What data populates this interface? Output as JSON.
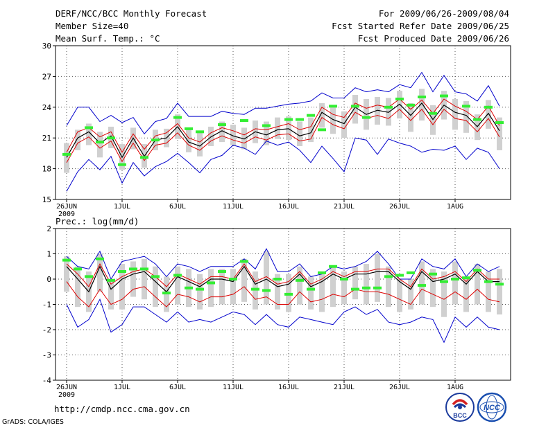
{
  "header": {
    "title": "DERF/NCC/BCC Monthly Forecast",
    "member_size": "Member Size=40",
    "variable": "Mean Surf. Temp.: °C",
    "period": "For 2009/06/26-2009/08/04",
    "refer_date": "Fcst Started Refer Date 2009/06/25",
    "produced_date": "Fcst Produced Date 2009/06/26"
  },
  "footer": {
    "url": "http://cmdp.ncc.cma.gov.cn",
    "credit": "GrADS: COLA/IGES",
    "logo_bcc_text": "BCC",
    "logo_ncc_text": "NCC"
  },
  "colors": {
    "envelope": "#0000cc",
    "spread": "#dd0000",
    "mean": "#000000",
    "box": "#d0d0d0",
    "obs": "#33ee33",
    "grid": "#555555"
  },
  "chart_data": [
    {
      "type": "ensemble-boxplot",
      "panel": "temperature",
      "title": "Mean Surf. Temp.: °C",
      "ylim": [
        15,
        30
      ],
      "yticks": [
        15,
        18,
        21,
        24,
        27,
        30
      ],
      "ytick_labels": [
        "15",
        "18",
        "21",
        "24",
        "27",
        "30"
      ],
      "xlim": [
        1,
        40
      ],
      "xticks": [
        1,
        6,
        11,
        16,
        21,
        26,
        31,
        36
      ],
      "xtick_labels": [
        "26JUN",
        "1JUL",
        "6JUL",
        "11JUL",
        "16JUL",
        "21JUL",
        "26JUL",
        "1AUG"
      ],
      "year_label": "2009",
      "grid": true,
      "day": [
        1,
        2,
        3,
        4,
        5,
        6,
        7,
        8,
        9,
        10,
        11,
        12,
        13,
        14,
        15,
        16,
        17,
        18,
        19,
        20,
        21,
        22,
        23,
        24,
        25,
        26,
        27,
        28,
        29,
        30,
        31,
        32,
        33,
        34,
        35,
        36,
        37,
        38,
        39,
        40
      ],
      "max": [
        22.2,
        24.0,
        24.0,
        22.6,
        23.2,
        22.5,
        23.0,
        21.4,
        22.6,
        22.9,
        24.4,
        23.1,
        23.1,
        23.1,
        23.6,
        23.4,
        23.3,
        23.9,
        23.9,
        24.1,
        24.3,
        24.4,
        24.6,
        25.4,
        24.9,
        24.9,
        25.9,
        25.5,
        25.7,
        25.5,
        26.2,
        25.9,
        27.4,
        25.5,
        27.1,
        25.5,
        25.3,
        24.6,
        26.1,
        24.1
      ],
      "min": [
        15.8,
        17.7,
        18.9,
        17.9,
        19.2,
        16.6,
        18.6,
        17.3,
        18.2,
        18.7,
        19.5,
        18.6,
        17.6,
        18.9,
        19.3,
        20.3,
        20.0,
        19.4,
        20.7,
        20.3,
        20.6,
        19.8,
        18.6,
        20.2,
        19.0,
        17.7,
        21.0,
        20.8,
        19.4,
        20.9,
        20.5,
        20.2,
        19.6,
        19.9,
        19.8,
        20.2,
        18.9,
        20.0,
        19.6,
        18.0
      ],
      "spread_upper": [
        19.6,
        21.6,
        22.0,
        21.1,
        21.6,
        19.6,
        21.4,
        19.9,
        21.2,
        21.5,
        22.4,
        21.0,
        20.6,
        21.5,
        22.0,
        21.7,
        21.3,
        21.9,
        21.8,
        22.1,
        22.4,
        21.8,
        22.1,
        24.0,
        23.3,
        23.0,
        24.4,
        23.9,
        24.2,
        24.0,
        24.8,
        23.8,
        24.7,
        23.4,
        24.8,
        24.1,
        23.6,
        22.8,
        24.1,
        22.2
      ],
      "mean": [
        19.1,
        21.0,
        21.6,
        20.5,
        21.2,
        19.1,
        21.0,
        19.2,
        20.8,
        21.0,
        22.1,
        20.6,
        20.2,
        21.1,
        21.7,
        21.2,
        20.9,
        21.6,
        21.3,
        21.8,
        21.9,
        21.2,
        21.5,
        23.5,
        22.8,
        22.4,
        24.0,
        23.3,
        23.7,
        23.5,
        24.3,
        23.2,
        24.4,
        22.8,
        24.2,
        23.5,
        23.2,
        22.1,
        23.4,
        21.7
      ],
      "spread_lower": [
        18.6,
        20.5,
        21.1,
        20.0,
        20.7,
        18.7,
        20.5,
        18.8,
        20.3,
        20.5,
        21.5,
        20.3,
        19.8,
        20.7,
        21.2,
        20.8,
        20.5,
        21.1,
        20.8,
        21.3,
        21.4,
        20.7,
        20.9,
        23.0,
        22.3,
        21.9,
        23.5,
        22.9,
        23.2,
        22.9,
        23.8,
        22.7,
        23.8,
        22.3,
        23.8,
        22.9,
        22.7,
        21.6,
        22.9,
        21.1
      ],
      "box_high": [
        20.5,
        21.8,
        22.4,
        21.6,
        22.1,
        20.4,
        22.0,
        20.4,
        21.8,
        21.9,
        23.3,
        21.9,
        21.5,
        22.1,
        22.6,
        22.3,
        22.0,
        22.7,
        22.6,
        23.0,
        23.1,
        22.6,
        23.0,
        24.4,
        24.0,
        23.6,
        25.2,
        24.8,
        25.0,
        24.9,
        25.6,
        24.4,
        25.8,
        24.2,
        25.6,
        24.8,
        24.6,
        23.3,
        24.7,
        23.0
      ],
      "box_low": [
        17.6,
        19.8,
        20.3,
        19.1,
        20.0,
        17.9,
        19.9,
        18.1,
        19.8,
        20.1,
        20.9,
        19.6,
        19.2,
        20.2,
        20.6,
        20.3,
        19.9,
        20.5,
        20.3,
        20.9,
        20.8,
        20.2,
        20.6,
        22.0,
        21.4,
        21.0,
        22.4,
        21.8,
        22.3,
        22.2,
        22.9,
        21.6,
        22.7,
        21.3,
        22.8,
        21.8,
        21.5,
        20.8,
        21.9,
        19.8
      ],
      "observed": [
        19.4,
        null,
        22.0,
        20.6,
        21.0,
        18.4,
        null,
        19.1,
        20.8,
        null,
        23.0,
        21.9,
        21.6,
        null,
        22.3,
        null,
        22.7,
        null,
        22.2,
        null,
        22.8,
        22.8,
        23.2,
        21.8,
        24.1,
        null,
        24.1,
        23.0,
        null,
        24.0,
        24.8,
        24.2,
        25.0,
        23.4,
        25.1,
        null,
        24.1,
        22.8,
        24.0,
        22.5
      ]
    },
    {
      "type": "ensemble-boxplot",
      "panel": "precipitation",
      "title": "Prec.: log(mm/d)",
      "ylim": [
        -4,
        2
      ],
      "yticks": [
        -4,
        -3,
        -2,
        -1,
        0,
        1,
        2
      ],
      "ytick_labels": [
        "-4",
        "-3",
        "-2",
        "-1",
        "0",
        "1",
        "2"
      ],
      "xlim": [
        1,
        40
      ],
      "xticks": [
        1,
        6,
        11,
        16,
        21,
        26,
        31,
        36
      ],
      "xtick_labels": [
        "26JUN",
        "1JUL",
        "6JUL",
        "11JUL",
        "16JUL",
        "21JUL",
        "26JUL",
        "1AUG"
      ],
      "year_label": "2009",
      "grid": true,
      "day": [
        1,
        2,
        3,
        4,
        5,
        6,
        7,
        8,
        9,
        10,
        11,
        12,
        13,
        14,
        15,
        16,
        17,
        18,
        19,
        20,
        21,
        22,
        23,
        24,
        25,
        26,
        27,
        28,
        29,
        30,
        31,
        32,
        33,
        34,
        35,
        36,
        37,
        38,
        39,
        40
      ],
      "max": [
        0.9,
        0.5,
        0.4,
        1.1,
        0.0,
        0.7,
        0.8,
        0.9,
        0.6,
        0.1,
        0.6,
        0.5,
        0.3,
        0.5,
        0.5,
        0.5,
        0.8,
        0.4,
        1.2,
        0.3,
        0.3,
        0.6,
        0.1,
        0.2,
        0.5,
        0.4,
        0.5,
        0.7,
        1.1,
        0.6,
        0.0,
        0.0,
        0.8,
        0.5,
        0.4,
        0.8,
        0.1,
        0.6,
        0.3,
        0.5
      ],
      "min": [
        -1.0,
        -1.9,
        -1.6,
        -0.8,
        -2.1,
        -1.8,
        -1.1,
        -1.1,
        -1.4,
        -1.7,
        -1.3,
        -1.7,
        -1.6,
        -1.7,
        -1.5,
        -1.3,
        -1.4,
        -1.8,
        -1.4,
        -1.8,
        -1.9,
        -1.5,
        -1.6,
        -1.7,
        -1.8,
        -1.3,
        -1.1,
        -1.4,
        -1.2,
        -1.7,
        -1.8,
        -1.7,
        -1.5,
        -1.6,
        -2.5,
        -1.5,
        -1.9,
        -1.5,
        -1.9,
        -2.0
      ],
      "spread_upper": [
        0.6,
        0.2,
        -0.3,
        0.6,
        -0.2,
        0.1,
        0.3,
        0.4,
        0.1,
        -0.3,
        0.2,
        0.0,
        -0.2,
        0.1,
        0.1,
        0.0,
        0.6,
        -0.1,
        0.1,
        -0.2,
        -0.1,
        0.3,
        -0.2,
        0.0,
        0.3,
        0.1,
        0.3,
        0.3,
        0.4,
        0.4,
        0.0,
        -0.3,
        0.4,
        0.0,
        0.1,
        0.3,
        -0.1,
        0.4,
        0.0,
        0.0
      ],
      "mean": [
        0.5,
        0.0,
        -0.5,
        0.5,
        -0.4,
        0.0,
        0.2,
        0.3,
        -0.1,
        -0.5,
        0.1,
        -0.1,
        -0.3,
        0.0,
        0.0,
        -0.1,
        0.5,
        -0.2,
        0.0,
        -0.3,
        -0.2,
        0.2,
        -0.3,
        -0.1,
        0.2,
        0.0,
        0.2,
        0.2,
        0.3,
        0.3,
        -0.1,
        -0.4,
        0.3,
        -0.1,
        0.0,
        0.2,
        -0.2,
        0.3,
        -0.1,
        -0.1
      ],
      "spread_lower": [
        -0.1,
        -0.7,
        -1.1,
        -0.4,
        -1.0,
        -0.8,
        -0.4,
        -0.3,
        -0.7,
        -1.1,
        -0.6,
        -0.7,
        -0.9,
        -0.7,
        -0.7,
        -0.6,
        -0.3,
        -0.8,
        -0.7,
        -1.0,
        -1.0,
        -0.5,
        -0.9,
        -0.8,
        -0.6,
        -0.7,
        -0.4,
        -0.5,
        -0.5,
        -0.6,
        -0.8,
        -1.0,
        -0.4,
        -0.6,
        -0.8,
        -0.5,
        -0.8,
        -0.4,
        -0.8,
        -0.9
      ],
      "box_high": [
        0.9,
        0.5,
        0.3,
        1.0,
        0.0,
        0.6,
        0.7,
        0.8,
        0.5,
        0.1,
        0.5,
        0.4,
        0.2,
        0.4,
        0.4,
        0.4,
        0.8,
        0.3,
        1.1,
        0.2,
        0.2,
        0.5,
        0.1,
        0.2,
        0.5,
        0.3,
        0.5,
        0.6,
        1.0,
        0.5,
        0.0,
        0.0,
        0.7,
        0.4,
        0.3,
        0.7,
        0.1,
        0.6,
        0.3,
        0.4
      ],
      "box_low": [
        -0.5,
        -1.1,
        -1.3,
        -0.5,
        -1.2,
        -1.2,
        -0.7,
        -0.8,
        -1.1,
        -1.3,
        -1.0,
        -1.1,
        -1.2,
        -1.1,
        -1.0,
        -1.0,
        -0.9,
        -1.2,
        -1.0,
        -1.2,
        -1.3,
        -1.0,
        -1.2,
        -1.3,
        -1.1,
        -1.0,
        -0.8,
        -1.0,
        -0.9,
        -1.1,
        -1.3,
        -1.2,
        -1.0,
        -1.1,
        -1.5,
        -1.0,
        -1.3,
        -1.0,
        -1.3,
        -1.4
      ],
      "observed": [
        0.75,
        0.4,
        0.1,
        0.8,
        -0.05,
        0.3,
        0.4,
        0.4,
        0.1,
        -0.55,
        0.15,
        -0.35,
        -0.4,
        -0.15,
        0.3,
        0.0,
        0.7,
        -0.4,
        -0.45,
        0.0,
        -0.6,
        -0.05,
        -0.4,
        0.25,
        0.5,
        0.0,
        -0.4,
        -0.35,
        -0.35,
        0.1,
        0.15,
        0.25,
        -0.25,
        0.2,
        -0.1,
        0.0,
        0.05,
        0.35,
        -0.1,
        -0.2
      ]
    }
  ]
}
